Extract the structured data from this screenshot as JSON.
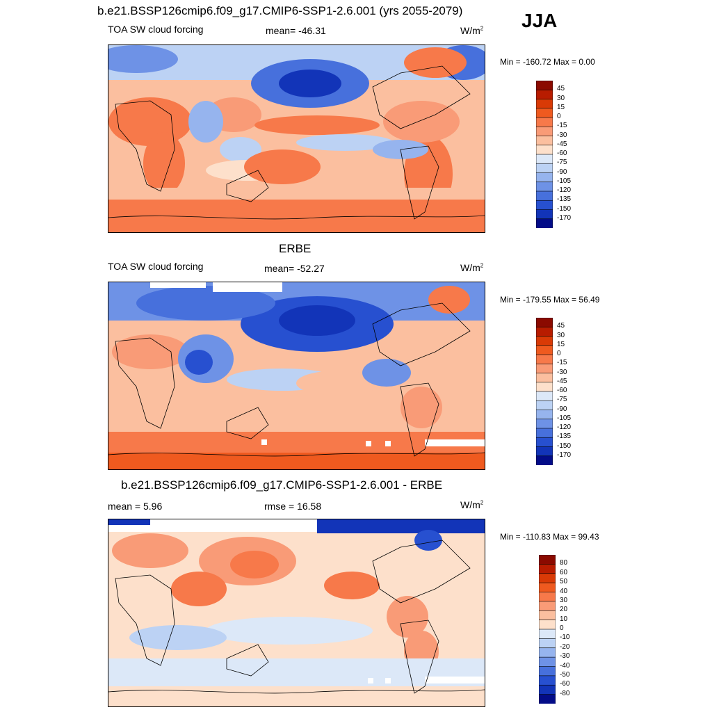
{
  "season": "JJA",
  "panels": [
    {
      "title": "b.e21.BSSP126cmip6.f09_g17.CMIP6-SSP1-2.6.001 (yrs 2055-2079)",
      "left_label": "TOA SW cloud forcing",
      "center_label": "mean= -46.31",
      "units_base": "W/m",
      "units_exp": "2",
      "minmax": "Min = -160.72 Max =   0.00",
      "colorbar": {
        "labels": [
          "45",
          "30",
          "15",
          "0",
          "-15",
          "-30",
          "-45",
          "-60",
          "-75",
          "-90",
          "-105",
          "-120",
          "-135",
          "-150",
          "-170"
        ],
        "colors": [
          "#8b0a00",
          "#b81c00",
          "#d93a06",
          "#ef5a1f",
          "#f7794a",
          "#f99b77",
          "#fbbf9f",
          "#fde0cb",
          "#dce8f8",
          "#bcd2f4",
          "#96b4ee",
          "#6e92e6",
          "#4770dc",
          "#2750d0",
          "#1234b8",
          "#030c88"
        ]
      }
    },
    {
      "title": "ERBE",
      "left_label": "TOA SW cloud forcing",
      "center_label": "mean= -52.27",
      "units_base": "W/m",
      "units_exp": "2",
      "minmax": "Min = -179.55 Max =  56.49",
      "colorbar": {
        "labels": [
          "45",
          "30",
          "15",
          "0",
          "-15",
          "-30",
          "-45",
          "-60",
          "-75",
          "-90",
          "-105",
          "-120",
          "-135",
          "-150",
          "-170"
        ],
        "colors": [
          "#8b0a00",
          "#b81c00",
          "#d93a06",
          "#ef5a1f",
          "#f7794a",
          "#f99b77",
          "#fbbf9f",
          "#fde0cb",
          "#dce8f8",
          "#bcd2f4",
          "#96b4ee",
          "#6e92e6",
          "#4770dc",
          "#2750d0",
          "#1234b8",
          "#030c88"
        ]
      }
    },
    {
      "title": "b.e21.BSSP126cmip6.f09_g17.CMIP6-SSP1-2.6.001 - ERBE",
      "left_label": "mean =   5.96",
      "center_label": "rmse =  16.58",
      "units_base": "W/m",
      "units_exp": "2",
      "minmax": "Min = -110.83 Max =  99.43",
      "colorbar": {
        "labels": [
          "80",
          "60",
          "50",
          "40",
          "30",
          "20",
          "10",
          "0",
          "-10",
          "-20",
          "-30",
          "-40",
          "-50",
          "-60",
          "-80"
        ],
        "colors": [
          "#8b0a00",
          "#b81c00",
          "#d93a06",
          "#ef5a1f",
          "#f7794a",
          "#f99b77",
          "#fbbf9f",
          "#fde0cb",
          "#dce8f8",
          "#bcd2f4",
          "#96b4ee",
          "#6e92e6",
          "#4770dc",
          "#2750d0",
          "#1234b8",
          "#030c88"
        ]
      }
    }
  ]
}
